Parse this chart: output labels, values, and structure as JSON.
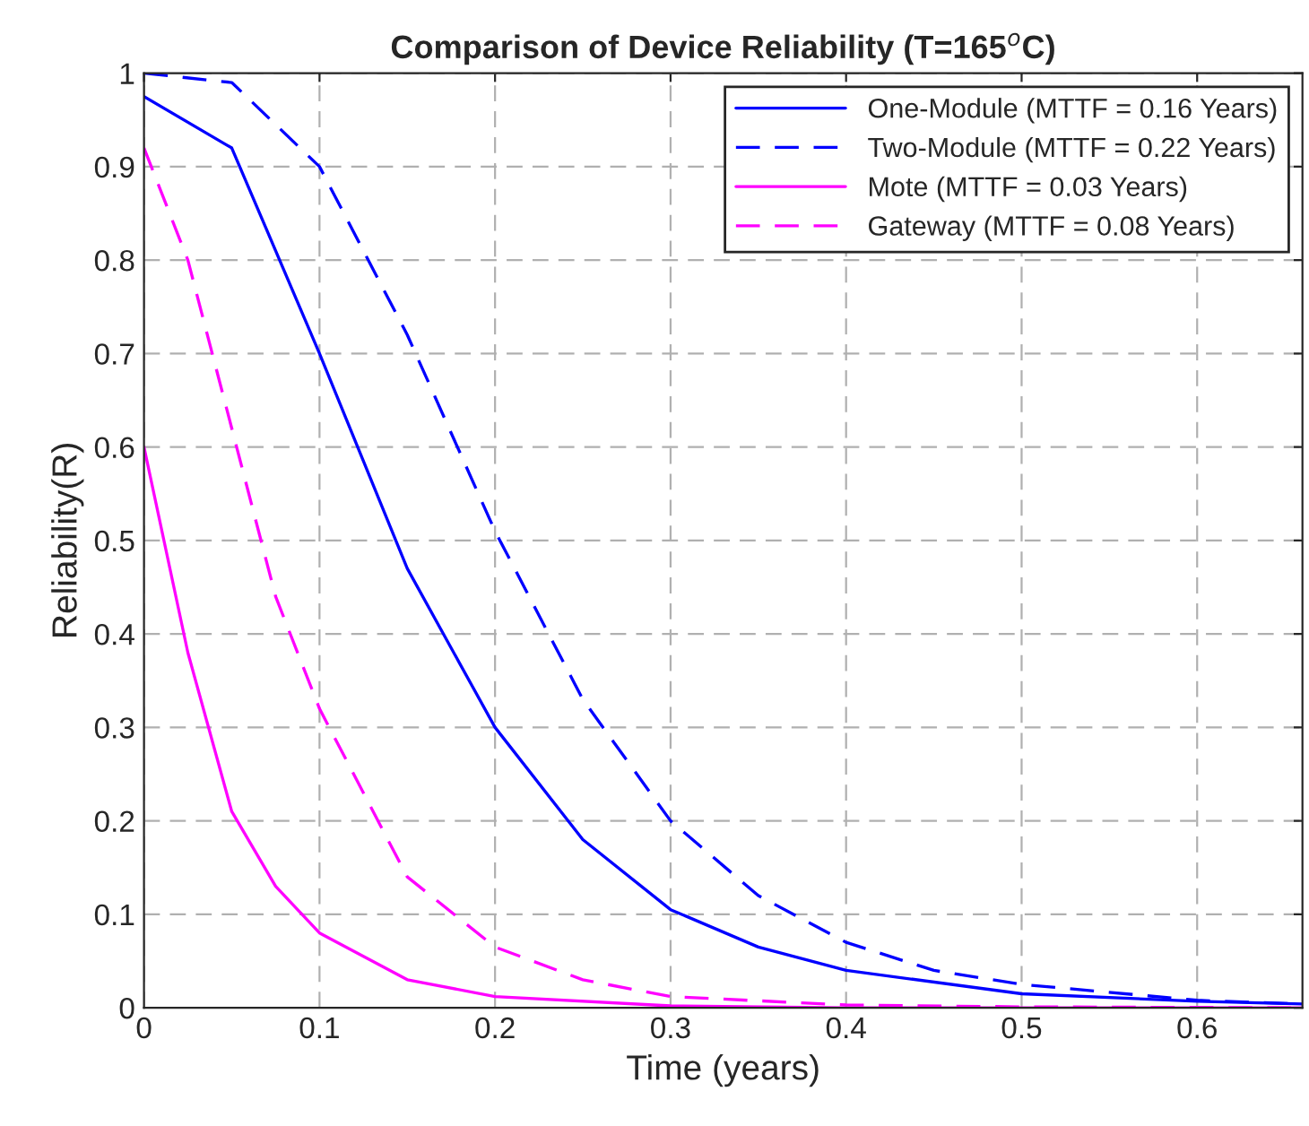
{
  "chart_data": {
    "type": "line",
    "title": "Comparison of Device Reliability (T=165$^{o}$C)",
    "xlabel": "Time (years)",
    "ylabel": "Reliability(R)",
    "xlim": [
      0,
      0.66
    ],
    "ylim": [
      0,
      1
    ],
    "xticks": [
      0,
      0.1,
      0.2,
      0.3,
      0.4,
      0.5,
      0.6
    ],
    "yticks": [
      0,
      0.1,
      0.2,
      0.3,
      0.4,
      0.5,
      0.6,
      0.7,
      0.8,
      0.9,
      1
    ],
    "grid": true,
    "legend": "top right",
    "series": [
      {
        "name": "One-Module (MTTF = 0.16 Years)",
        "color": "#0000ff",
        "line_style": "solid",
        "x": [
          0,
          0.05,
          0.1,
          0.15,
          0.2,
          0.25,
          0.3,
          0.35,
          0.4,
          0.5,
          0.6,
          0.66
        ],
        "values": [
          0.975,
          0.92,
          0.7,
          0.47,
          0.3,
          0.18,
          0.105,
          0.065,
          0.04,
          0.015,
          0.007,
          0.004
        ]
      },
      {
        "name": "Two-Module (MTTF = 0.22 Years)",
        "color": "#0000ff",
        "line_style": "dashed",
        "x": [
          0,
          0.05,
          0.1,
          0.15,
          0.2,
          0.25,
          0.3,
          0.35,
          0.4,
          0.45,
          0.5,
          0.6,
          0.66
        ],
        "values": [
          1.0,
          0.99,
          0.9,
          0.72,
          0.51,
          0.33,
          0.2,
          0.12,
          0.07,
          0.04,
          0.025,
          0.008,
          0.004
        ]
      },
      {
        "name": "Mote (MTTF = 0.03 Years)",
        "color": "#ff00ff",
        "line_style": "solid",
        "x": [
          0,
          0.025,
          0.05,
          0.075,
          0.1,
          0.15,
          0.2,
          0.3,
          0.4,
          0.66
        ],
        "values": [
          0.6,
          0.38,
          0.21,
          0.13,
          0.08,
          0.03,
          0.012,
          0.002,
          0,
          0
        ]
      },
      {
        "name": "Gateway (MTTF = 0.08 Years)",
        "color": "#ff00ff",
        "line_style": "dashed",
        "x": [
          0,
          0.025,
          0.05,
          0.075,
          0.1,
          0.15,
          0.2,
          0.25,
          0.3,
          0.4,
          0.5,
          0.66
        ],
        "values": [
          0.92,
          0.8,
          0.62,
          0.44,
          0.32,
          0.14,
          0.065,
          0.03,
          0.012,
          0.003,
          0.001,
          0
        ]
      }
    ]
  }
}
